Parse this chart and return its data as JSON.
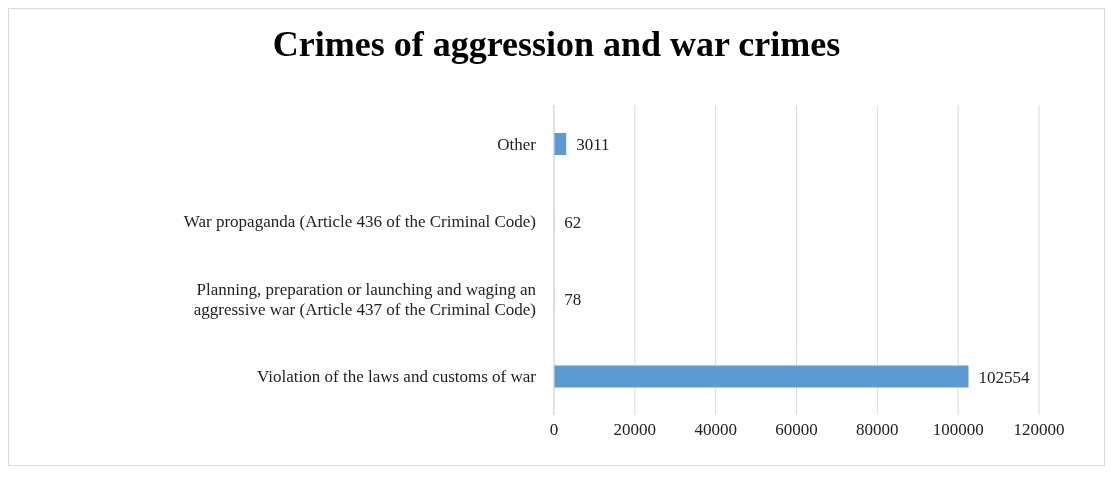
{
  "chart_data": {
    "type": "bar",
    "orientation": "horizontal",
    "title": "Crimes of aggression and war crimes",
    "categories": [
      "Other",
      "War propaganda (Article 436 of the Criminal Code)",
      "Planning, preparation or launching and waging an aggressive war (Article 437 of the Criminal Code)",
      "Violation of the laws and customs of war"
    ],
    "values": [
      3011,
      62,
      78,
      102554
    ],
    "color": "#5b9bd5",
    "xlim": [
      0,
      120000
    ],
    "xticks": [
      0,
      20000,
      40000,
      60000,
      80000,
      100000,
      120000
    ],
    "grid": "x",
    "data_labels": true
  }
}
